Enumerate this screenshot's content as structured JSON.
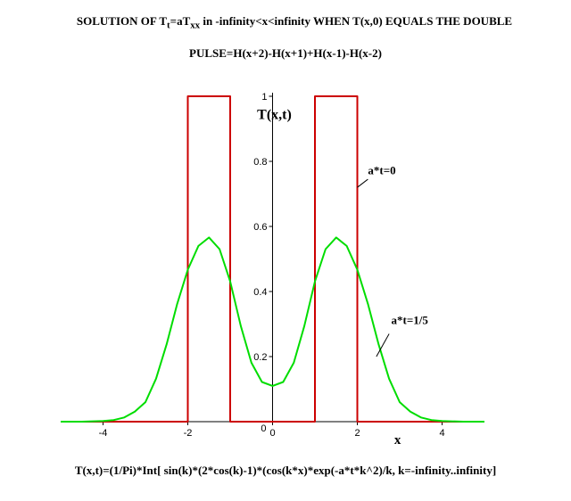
{
  "title": {
    "line1_pre": "SOLUTION OF T",
    "line1_sub1": "t",
    "line1_mid": "=aT",
    "line1_sub2": "xx",
    "line1_post": " in -infinity<x<infinity WHEN T(x,0) EQUALS THE DOUBLE",
    "line2": "PULSE=H(x+2)-H(x+1)+H(x-1)-H(x-2)"
  },
  "formula": "T(x,t)=(1/Pi)*Int[ sin(k)*(2*cos(k)-1)*(cos(k*x)*exp(-a*t*k^2)/k, k=-infinity..infinity]",
  "chart_data": {
    "type": "line",
    "xlabel": "x",
    "ylabel": "T(x,t)",
    "xlim": [
      -5,
      5
    ],
    "ylim": [
      0,
      1
    ],
    "grid": false,
    "x_ticks": [
      -4,
      -2,
      0,
      2,
      4
    ],
    "x_tick_labels": [
      "-4",
      "-2",
      "0",
      "2",
      "4"
    ],
    "y_ticks": [
      0.2,
      0.4,
      0.6,
      0.8,
      1
    ],
    "y_tick_labels": [
      "0.2",
      "0.4",
      "0.6",
      "0.8",
      "1"
    ],
    "series": [
      {
        "name": "a*t=0",
        "color": "#cc0000",
        "x": [
          -5,
          -2,
          -2,
          -1,
          -1,
          1,
          1,
          2,
          2,
          5
        ],
        "y": [
          0,
          0,
          1,
          1,
          0,
          0,
          1,
          1,
          0,
          0
        ]
      },
      {
        "name": "a*t=1/5",
        "color": "#00dd00",
        "x": [
          -5,
          -4.5,
          -4,
          -3.75,
          -3.5,
          -3.25,
          -3,
          -2.75,
          -2.5,
          -2.25,
          -2,
          -1.75,
          -1.5,
          -1.25,
          -1,
          -0.75,
          -0.5,
          -0.25,
          0,
          0.25,
          0.5,
          0.75,
          1,
          1.25,
          1.5,
          1.75,
          2,
          2.25,
          2.5,
          2.75,
          3,
          3.25,
          3.5,
          3.75,
          4,
          4.5,
          5
        ],
        "y": [
          0,
          0,
          0.002,
          0.005,
          0.013,
          0.031,
          0.06,
          0.132,
          0.238,
          0.362,
          0.467,
          0.54,
          0.566,
          0.53,
          0.431,
          0.294,
          0.181,
          0.122,
          0.11,
          0.122,
          0.181,
          0.294,
          0.431,
          0.53,
          0.566,
          0.54,
          0.467,
          0.362,
          0.238,
          0.132,
          0.06,
          0.031,
          0.013,
          0.005,
          0.002,
          0,
          0
        ]
      }
    ],
    "annotations": [
      "a*t=0",
      "a*t=1/5"
    ]
  }
}
